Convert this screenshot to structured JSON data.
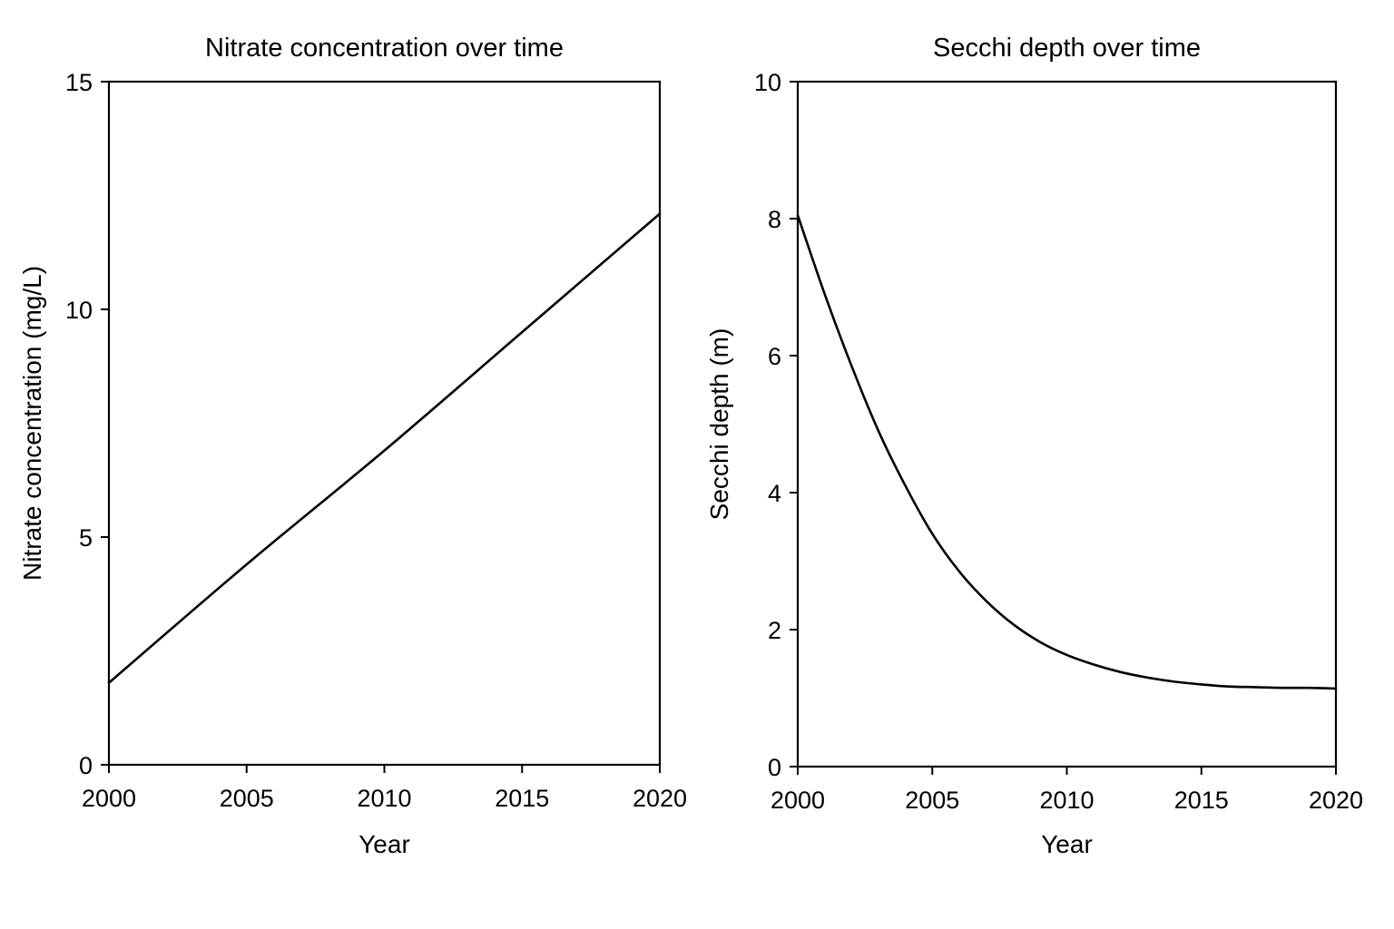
{
  "chart_data": [
    {
      "type": "line",
      "title": "Nitrate concentration over time",
      "xlabel": "Year",
      "ylabel": "Nitrate concentration (mg/L)",
      "xlim": [
        2000,
        2020
      ],
      "ylim": [
        0,
        15
      ],
      "xticks": [
        "2000",
        "2005",
        "2010",
        "2015",
        "2020"
      ],
      "yticks": [
        "0",
        "5",
        "10",
        "15"
      ],
      "grid": false,
      "series": [
        {
          "color": "#000000",
          "x": [
            2000,
            2005,
            2010,
            2015,
            2020
          ],
          "y": [
            1.8,
            4.4,
            6.9,
            9.5,
            12.1
          ]
        }
      ]
    },
    {
      "type": "line",
      "title": "Secchi depth over time",
      "xlabel": "Year",
      "ylabel": "Secchi depth (m)",
      "xlim": [
        2000,
        2020
      ],
      "ylim": [
        0,
        10
      ],
      "xticks": [
        "2000",
        "2005",
        "2010",
        "2015",
        "2020"
      ],
      "yticks": [
        "0",
        "2",
        "4",
        "6",
        "8",
        "10"
      ],
      "grid": false,
      "series": [
        {
          "color": "#000000",
          "x": [
            2000,
            2001,
            2002,
            2003,
            2004,
            2005,
            2006,
            2007,
            2008,
            2009,
            2010,
            2011,
            2012,
            2013,
            2014,
            2015,
            2016,
            2017,
            2018,
            2019,
            2020
          ],
          "y": [
            8.05,
            6.9,
            5.85,
            4.9,
            4.1,
            3.4,
            2.85,
            2.42,
            2.08,
            1.82,
            1.63,
            1.49,
            1.38,
            1.3,
            1.24,
            1.2,
            1.17,
            1.16,
            1.15,
            1.15,
            1.14
          ]
        }
      ]
    }
  ]
}
